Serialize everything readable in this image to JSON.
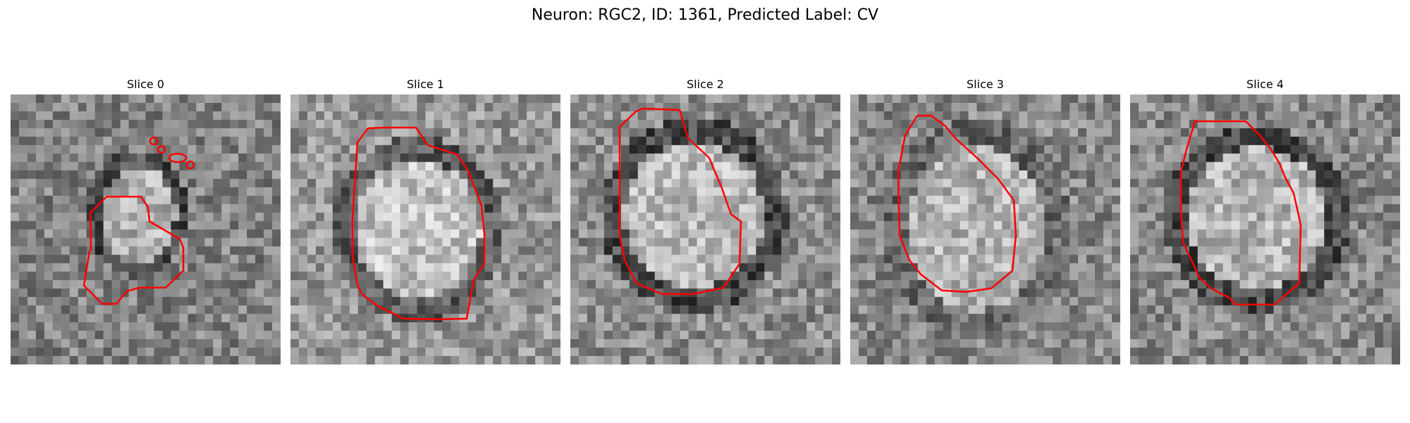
{
  "figure": {
    "title": "Neuron: RGC2, ID: 1361, Predicted Label: CV"
  },
  "panels": [
    {
      "title": "Slice 0"
    },
    {
      "title": "Slice 1"
    },
    {
      "title": "Slice 2"
    },
    {
      "title": "Slice 3"
    },
    {
      "title": "Slice 4"
    }
  ],
  "colors": {
    "contour": "#ff0000",
    "background": "#ffffff"
  }
}
